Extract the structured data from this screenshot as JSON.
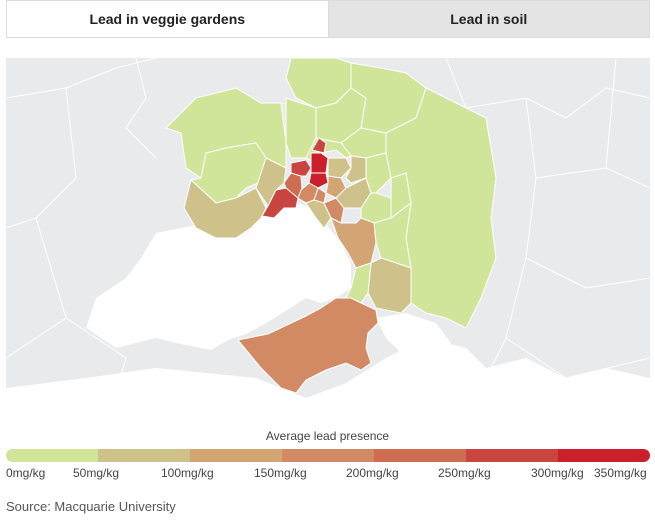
{
  "tabs": [
    {
      "label": "Lead in veggie gardens",
      "active": true
    },
    {
      "label": "Lead in soil",
      "active": false
    }
  ],
  "map": {
    "ocean_color": "#ffffff",
    "land_outside_color": "#e9eaeb"
  },
  "legend": {
    "title": "Average lead presence",
    "colors": [
      "#d0e59a",
      "#cec28a",
      "#d3a574",
      "#d18a63",
      "#cf6d53",
      "#c9453f",
      "#cb1f2c"
    ],
    "labels": [
      "0mg/kg",
      "50mg/kg",
      "100mg/kg",
      "150mg/kg",
      "200mg/kg",
      "250mg/kg",
      "300mg/kg",
      "350mg/kg"
    ]
  },
  "source": "Source: Macquarie University"
}
